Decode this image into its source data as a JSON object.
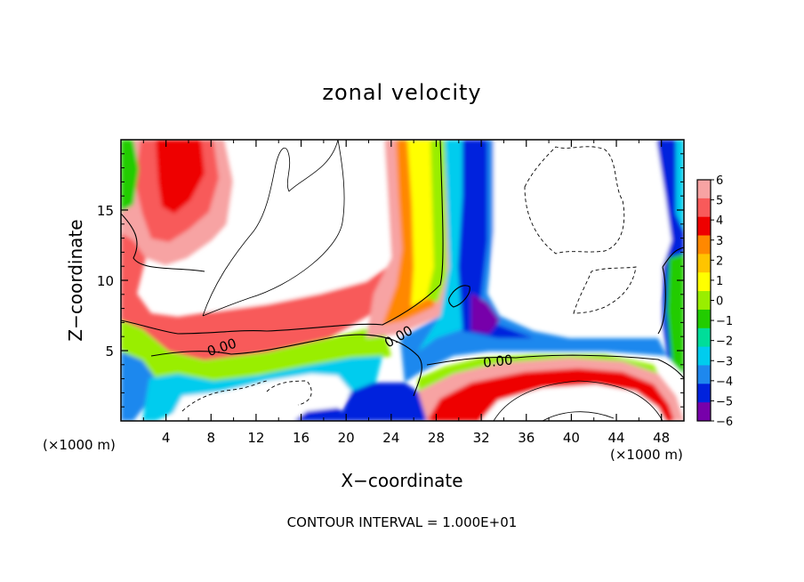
{
  "chart_data": {
    "type": "heatmap",
    "title": "zonal velocity",
    "xlabel": "X−coordinate",
    "ylabel": "Z−coordinate",
    "x_unit_left": "(×1000 m)",
    "x_unit_right": "(×1000 m)",
    "xlim": [
      0,
      50
    ],
    "ylim": [
      0,
      20
    ],
    "x_ticks": [
      4,
      8,
      12,
      16,
      20,
      24,
      28,
      32,
      36,
      40,
      44,
      48
    ],
    "x_tick_labels": [
      "4",
      "8",
      "12",
      "16",
      "20",
      "24",
      "28",
      "32",
      "36",
      "40",
      "44",
      "48"
    ],
    "y_ticks": [
      5,
      10,
      15
    ],
    "y_tick_labels": [
      "5",
      "10",
      "15"
    ],
    "colorbar": {
      "levels": [
        6,
        5,
        4,
        3,
        2,
        1,
        0,
        -1,
        -2,
        -3,
        -4,
        -5,
        -6
      ],
      "labels": [
        "6",
        "5",
        "4",
        "3",
        "2",
        "1",
        "0",
        "−1",
        "−2",
        "−3",
        "−4",
        "−5",
        "−6"
      ],
      "colors": [
        "#f7a3a3",
        "#f85a5a",
        "#ee0000",
        "#ff8800",
        "#ffc400",
        "#ffff00",
        "#99ee00",
        "#22cc00",
        "#00dd99",
        "#00ccee",
        "#1e88ee",
        "#0022dd",
        "#7700aa"
      ],
      "above_range_color": "#ffffff"
    },
    "contour_labels": [
      {
        "text": "0.00",
        "x": 9.5,
        "y": 5.5
      },
      {
        "text": "0.00",
        "x": 25.5,
        "y": 6.4
      },
      {
        "text": "0.00",
        "x": 33.5,
        "y": 4.3
      }
    ],
    "footer": "CONTOUR INTERVAL = 1.000E+01"
  }
}
